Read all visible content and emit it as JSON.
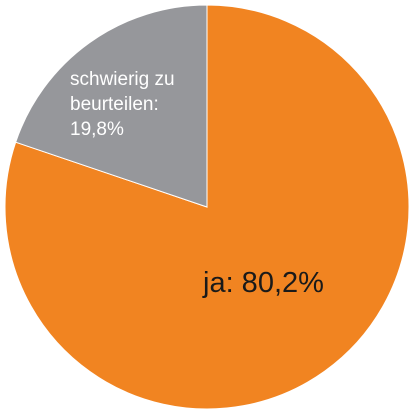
{
  "chart_data": {
    "type": "pie",
    "title": "",
    "slices": [
      {
        "label": "ja",
        "value": 80.2,
        "display": "ja: 80,2%",
        "color": "#f18421"
      },
      {
        "label": "schwierig zu beurteilen",
        "value": 19.8,
        "display_lines": [
          "schwierig zu",
          "beurteilen:",
          "19,8%"
        ],
        "color": "#96979b"
      }
    ],
    "start_angle_deg": 0,
    "direction": "clockwise"
  }
}
